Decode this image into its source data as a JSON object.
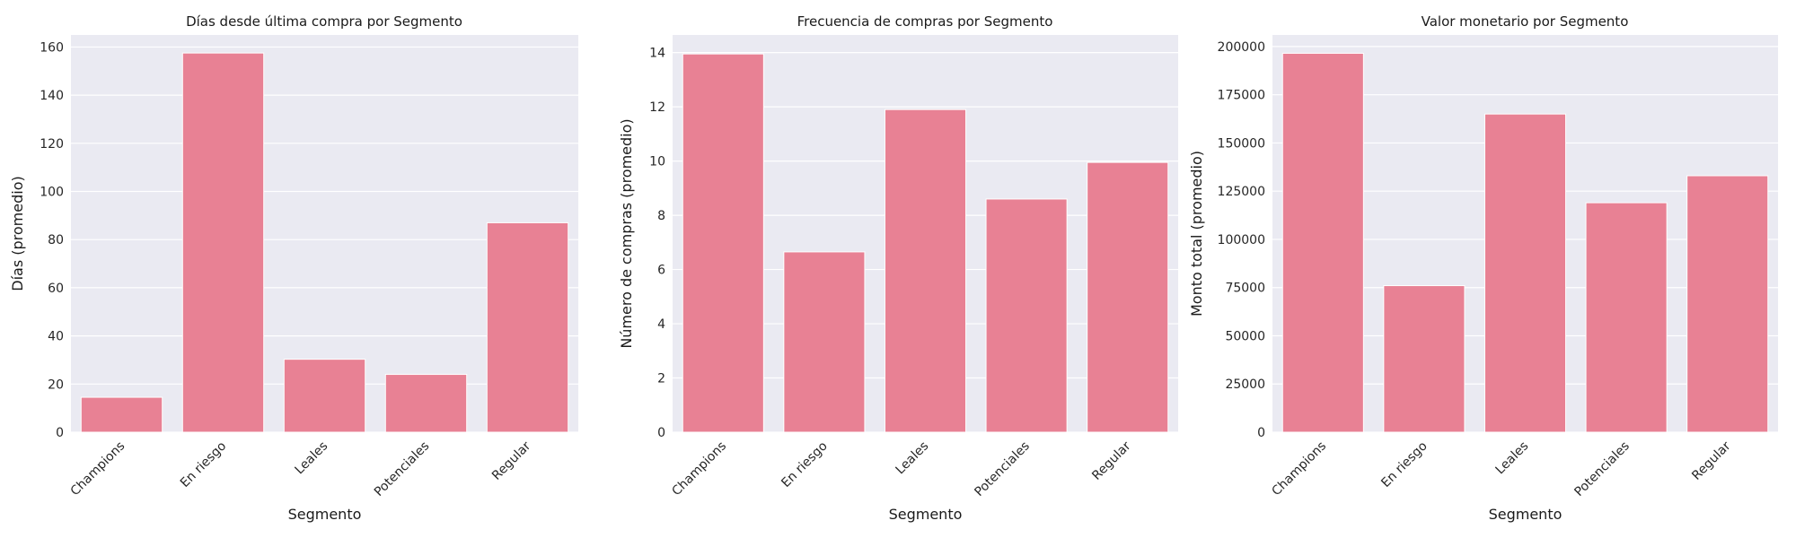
{
  "chart_data": [
    {
      "type": "bar",
      "title": "Días desde última compra por Segmento",
      "xlabel": "Segmento",
      "ylabel": "Días (promedio)",
      "categories": [
        "Champions",
        "En riesgo",
        "Leales",
        "Potenciales",
        "Regular"
      ],
      "values": [
        14.5,
        157.5,
        30.3,
        24.0,
        87.0
      ],
      "ylim": [
        0,
        165
      ],
      "yticks": [
        0,
        20,
        40,
        60,
        80,
        100,
        120,
        140,
        160
      ],
      "grid": true,
      "bar_color": "#e88194",
      "background_color": "#eaeaf2"
    },
    {
      "type": "bar",
      "title": "Frecuencia de compras por Segmento",
      "xlabel": "Segmento",
      "ylabel": "Número de compras (promedio)",
      "categories": [
        "Champions",
        "En riesgo",
        "Leales",
        "Potenciales",
        "Regular"
      ],
      "values": [
        13.95,
        6.65,
        11.9,
        8.6,
        9.95
      ],
      "ylim": [
        0,
        14.65
      ],
      "yticks": [
        0,
        2,
        4,
        6,
        8,
        10,
        12,
        14
      ],
      "grid": true,
      "bar_color": "#e88194",
      "background_color": "#eaeaf2"
    },
    {
      "type": "bar",
      "title": "Valor monetario por Segmento",
      "xlabel": "Segmento",
      "ylabel": "Monto total (promedio)",
      "categories": [
        "Champions",
        "En riesgo",
        "Leales",
        "Potenciales",
        "Regular"
      ],
      "values": [
        196500,
        76000,
        165000,
        119000,
        133000
      ],
      "ylim": [
        0,
        206000
      ],
      "yticks": [
        0,
        25000,
        50000,
        75000,
        100000,
        125000,
        150000,
        175000,
        200000
      ],
      "grid": true,
      "bar_color": "#e88194",
      "background_color": "#eaeaf2"
    }
  ]
}
